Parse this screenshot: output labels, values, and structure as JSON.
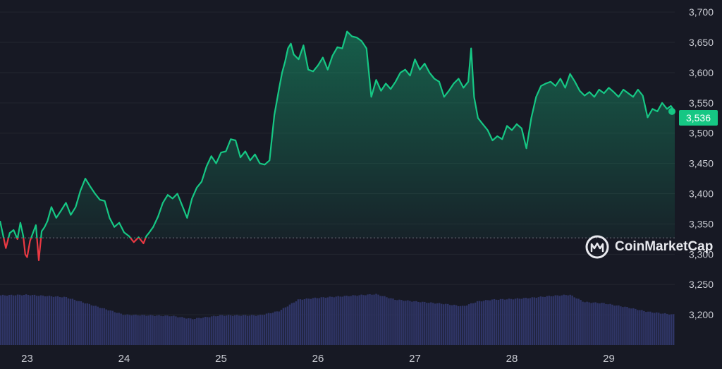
{
  "brand": {
    "name": "CoinMarketCap"
  },
  "colors": {
    "up": "#16c784",
    "down": "#ea3943",
    "volume": "#2f3566",
    "background": "#171924",
    "baseline": "#6b6e7a"
  },
  "chart_data": {
    "type": "line",
    "title": "",
    "xlabel": "",
    "ylabel": "",
    "x_ticks": [
      "23",
      "24",
      "25",
      "26",
      "27",
      "28",
      "29"
    ],
    "y_ticks": [
      "3,200",
      "3,250",
      "3,300",
      "3,350",
      "3,400",
      "3,450",
      "3,500",
      "3,550",
      "3,600",
      "3,650",
      "3,700"
    ],
    "ylim": [
      3150,
      3720
    ],
    "xlim": [
      22.72,
      29.68
    ],
    "baseline": 3327,
    "last_price": 3536,
    "last_price_label": "3,536",
    "grid": "horizontal",
    "series": [
      {
        "kind": "price",
        "x": [
          22.72,
          22.78,
          22.82,
          22.86,
          22.9,
          22.93,
          22.96,
          22.98,
          23.0,
          23.03,
          23.06,
          23.09,
          23.12,
          23.15,
          23.18,
          23.21,
          23.25,
          23.3,
          23.35,
          23.4,
          23.45,
          23.5,
          23.55,
          23.6,
          23.65,
          23.7,
          23.75,
          23.8,
          23.85,
          23.9,
          23.95,
          24.0,
          24.05,
          24.1,
          24.15,
          24.2,
          24.23,
          24.26,
          24.3,
          24.35,
          24.4,
          24.45,
          24.5,
          24.55,
          24.6,
          24.65,
          24.7,
          24.75,
          24.8,
          24.85,
          24.9,
          24.95,
          25.0,
          25.05,
          25.1,
          25.15,
          25.2,
          25.25,
          25.3,
          25.35,
          25.4,
          25.45,
          25.5,
          25.55,
          25.6,
          25.63,
          25.66,
          25.69,
          25.72,
          25.75,
          25.8,
          25.85,
          25.9,
          25.95,
          26.0,
          26.05,
          26.1,
          26.15,
          26.2,
          26.25,
          26.3,
          26.35,
          26.4,
          26.45,
          26.5,
          26.55,
          26.6,
          26.65,
          26.7,
          26.75,
          26.8,
          26.85,
          26.9,
          26.95,
          27.0,
          27.05,
          27.1,
          27.15,
          27.2,
          27.25,
          27.3,
          27.35,
          27.4,
          27.45,
          27.5,
          27.55,
          27.58,
          27.61,
          27.65,
          27.7,
          27.75,
          27.8,
          27.85,
          27.9,
          27.95,
          28.0,
          28.05,
          28.1,
          28.15,
          28.2,
          28.25,
          28.3,
          28.35,
          28.4,
          28.45,
          28.5,
          28.55,
          28.6,
          28.65,
          28.7,
          28.75,
          28.8,
          28.85,
          28.9,
          28.95,
          29.0,
          29.05,
          29.1,
          29.15,
          29.2,
          29.25,
          29.3,
          29.35,
          29.4,
          29.45,
          29.5,
          29.55,
          29.6,
          29.64,
          29.68
        ],
        "y": [
          3355,
          3310,
          3335,
          3340,
          3325,
          3352,
          3330,
          3300,
          3295,
          3322,
          3335,
          3348,
          3290,
          3338,
          3345,
          3355,
          3378,
          3360,
          3372,
          3385,
          3365,
          3378,
          3405,
          3425,
          3412,
          3400,
          3390,
          3388,
          3360,
          3345,
          3352,
          3336,
          3330,
          3320,
          3328,
          3318,
          3330,
          3336,
          3345,
          3362,
          3385,
          3398,
          3392,
          3400,
          3380,
          3360,
          3392,
          3410,
          3420,
          3445,
          3462,
          3450,
          3468,
          3470,
          3490,
          3488,
          3460,
          3470,
          3455,
          3465,
          3450,
          3448,
          3455,
          3530,
          3575,
          3600,
          3618,
          3640,
          3648,
          3630,
          3622,
          3645,
          3605,
          3602,
          3612,
          3625,
          3605,
          3628,
          3642,
          3640,
          3668,
          3660,
          3658,
          3652,
          3640,
          3560,
          3588,
          3570,
          3582,
          3573,
          3585,
          3600,
          3605,
          3595,
          3622,
          3605,
          3615,
          3600,
          3590,
          3585,
          3560,
          3570,
          3582,
          3590,
          3575,
          3585,
          3640,
          3560,
          3525,
          3515,
          3505,
          3488,
          3495,
          3490,
          3512,
          3505,
          3515,
          3508,
          3475,
          3525,
          3560,
          3578,
          3582,
          3585,
          3578,
          3590,
          3575,
          3598,
          3585,
          3570,
          3562,
          3568,
          3560,
          3572,
          3566,
          3575,
          3568,
          3560,
          3572,
          3566,
          3560,
          3572,
          3562,
          3526,
          3540,
          3536,
          3550,
          3540,
          3545,
          3536
        ]
      },
      {
        "kind": "volume",
        "x": [
          22.72,
          23.0,
          23.4,
          23.9,
          24.0,
          24.5,
          24.7,
          25.0,
          25.4,
          25.6,
          25.8,
          26.0,
          26.2,
          26.4,
          26.6,
          26.8,
          27.0,
          27.3,
          27.5,
          27.65,
          27.8,
          28.0,
          28.2,
          28.4,
          28.6,
          28.75,
          28.95,
          29.2,
          29.4,
          29.68
        ],
        "y": [
          3232,
          3233,
          3229,
          3205,
          3200,
          3198,
          3193,
          3199,
          3199,
          3206,
          3225,
          3228,
          3230,
          3232,
          3234,
          3225,
          3222,
          3218,
          3214,
          3222,
          3225,
          3226,
          3228,
          3231,
          3233,
          3221,
          3219,
          3212,
          3205,
          3200
        ]
      }
    ]
  }
}
